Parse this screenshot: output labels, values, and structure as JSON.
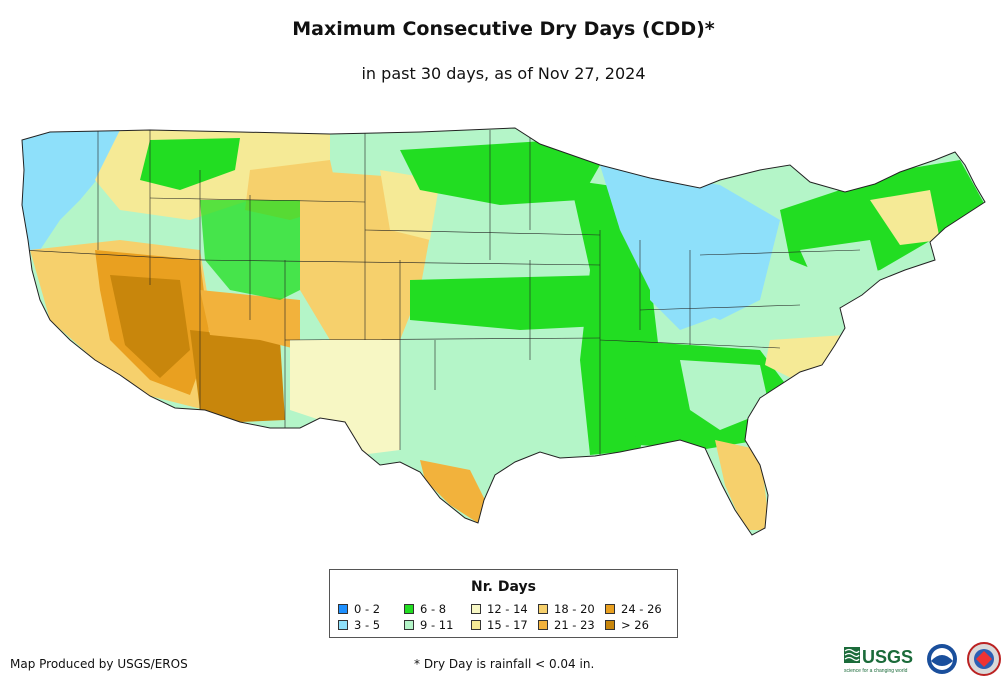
{
  "title": "Maximum Consecutive Dry Days (CDD)*",
  "subtitle": "in past 30 days, as of Nov 27, 2024",
  "legend": {
    "title": "Nr. Days",
    "items": [
      {
        "label": "0 - 2",
        "color": "#1e90ff"
      },
      {
        "label": "3 - 5",
        "color": "#8ee0fa"
      },
      {
        "label": "6 - 8",
        "color": "#22dd22"
      },
      {
        "label": "9 - 11",
        "color": "#b4f5c8"
      },
      {
        "label": "12 - 14",
        "color": "#f7f7c4"
      },
      {
        "label": "15 - 17",
        "color": "#f5ea96"
      },
      {
        "label": "18 - 20",
        "color": "#f6d06c"
      },
      {
        "label": "21 - 23",
        "color": "#f2b23c"
      },
      {
        "label": "24 - 26",
        "color": "#e9a020"
      },
      {
        "label": "> 26",
        "color": "#c8860c"
      }
    ]
  },
  "credit": "Map Produced by USGS/EROS",
  "footnote": "* Dry Day is rainfall < 0.04 in.",
  "logos": {
    "usgs": "USGS",
    "usgs_tagline": "science for a changing world"
  }
}
